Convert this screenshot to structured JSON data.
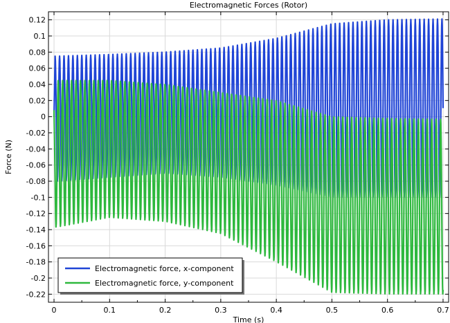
{
  "chart_data": {
    "type": "line",
    "title": "Electromagnetic Forces (Rotor)",
    "xlabel": "Time (s)",
    "ylabel": "Force (N)",
    "xlim": [
      -0.01,
      0.71
    ],
    "ylim": [
      -0.23,
      0.13
    ],
    "x_ticks": [
      0,
      0.1,
      0.2,
      0.3,
      0.4,
      0.5,
      0.6,
      0.7
    ],
    "x_tick_labels": [
      "0",
      "0.1",
      "0.2",
      "0.3",
      "0.4",
      "0.5",
      "0.6",
      "0.7"
    ],
    "y_ticks": [
      0.12,
      0.1,
      0.08,
      0.06,
      0.04,
      0.02,
      0,
      -0.02,
      -0.04,
      -0.06,
      -0.08,
      -0.1,
      -0.12,
      -0.14,
      -0.16,
      -0.18,
      -0.2,
      -0.22
    ],
    "y_tick_labels": [
      "0.12",
      "0.1",
      "0.08",
      "0.06",
      "0.04",
      "0.02",
      "0",
      "-0.02",
      "-0.04",
      "-0.06",
      "-0.08",
      "-0.1",
      "-0.12",
      "-0.14",
      "-0.16",
      "-0.18",
      "-0.2",
      "-0.22"
    ],
    "grid": true,
    "legend_position": "bottom-left",
    "series": [
      {
        "name": "Electromagnetic force, x-component",
        "color": "#1f44d6",
        "oscillation_periods_s": 0.008,
        "envelope_upper": [
          [
            0.005,
            0.075
          ],
          [
            0.1,
            0.077
          ],
          [
            0.2,
            0.08
          ],
          [
            0.3,
            0.085
          ],
          [
            0.4,
            0.097
          ],
          [
            0.5,
            0.115
          ],
          [
            0.6,
            0.12
          ],
          [
            0.7,
            0.121
          ]
        ],
        "envelope_lower": [
          [
            0.005,
            -0.08
          ],
          [
            0.1,
            -0.075
          ],
          [
            0.2,
            -0.07
          ],
          [
            0.3,
            -0.075
          ],
          [
            0.4,
            -0.085
          ],
          [
            0.5,
            -0.1
          ],
          [
            0.6,
            -0.1
          ],
          [
            0.7,
            -0.1
          ]
        ]
      },
      {
        "name": "Electromagnetic force, y-component",
        "color": "#2db83d",
        "oscillation_periods_s": 0.008,
        "envelope_upper": [
          [
            0.005,
            0.045
          ],
          [
            0.1,
            0.045
          ],
          [
            0.2,
            0.04
          ],
          [
            0.3,
            0.03
          ],
          [
            0.4,
            0.02
          ],
          [
            0.5,
            0.0
          ],
          [
            0.6,
            -0.002
          ],
          [
            0.7,
            -0.003
          ]
        ],
        "envelope_lower": [
          [
            0.005,
            -0.137
          ],
          [
            0.1,
            -0.125
          ],
          [
            0.2,
            -0.13
          ],
          [
            0.3,
            -0.145
          ],
          [
            0.4,
            -0.18
          ],
          [
            0.5,
            -0.218
          ],
          [
            0.6,
            -0.22
          ],
          [
            0.7,
            -0.22
          ]
        ]
      }
    ]
  }
}
